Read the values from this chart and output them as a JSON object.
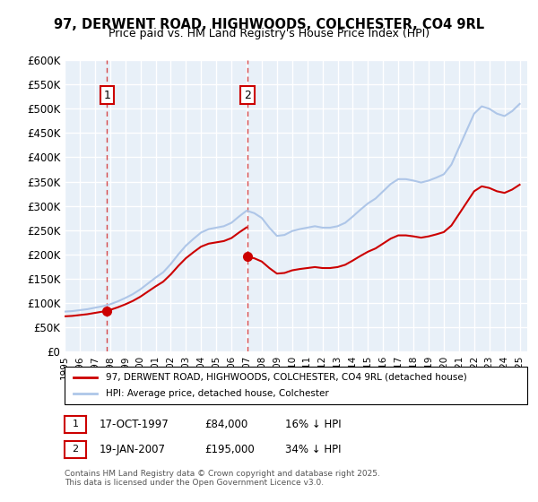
{
  "title": "97, DERWENT ROAD, HIGHWOODS, COLCHESTER, CO4 9RL",
  "subtitle": "Price paid vs. HM Land Registry's House Price Index (HPI)",
  "ylabel_ticks": [
    "£0",
    "£50K",
    "£100K",
    "£150K",
    "£200K",
    "£250K",
    "£300K",
    "£350K",
    "£400K",
    "£450K",
    "£500K",
    "£550K",
    "£600K"
  ],
  "ytick_values": [
    0,
    50000,
    100000,
    150000,
    200000,
    250000,
    300000,
    350000,
    400000,
    450000,
    500000,
    550000,
    600000
  ],
  "purchase1": {
    "date_num": 1997.79,
    "price": 84000,
    "label": "1"
  },
  "purchase2": {
    "date_num": 2007.05,
    "price": 195000,
    "label": "2"
  },
  "legend_line1": "97, DERWENT ROAD, HIGHWOODS, COLCHESTER, CO4 9RL (detached house)",
  "legend_line2": "HPI: Average price, detached house, Colchester",
  "annotation1": "1    17-OCT-1997         £84,000         16% ↓ HPI",
  "annotation2": "2    19-JAN-2007         £195,000       34% ↓ HPI",
  "footer": "Contains HM Land Registry data © Crown copyright and database right 2025.\nThis data is licensed under the Open Government Licence v3.0.",
  "hpi_color": "#aec6e8",
  "price_color": "#cc0000",
  "bg_color": "#e8f0f8",
  "grid_color": "#ffffff",
  "xmin": 1995.0,
  "xmax": 2025.5,
  "ymin": 0,
  "ymax": 600000
}
